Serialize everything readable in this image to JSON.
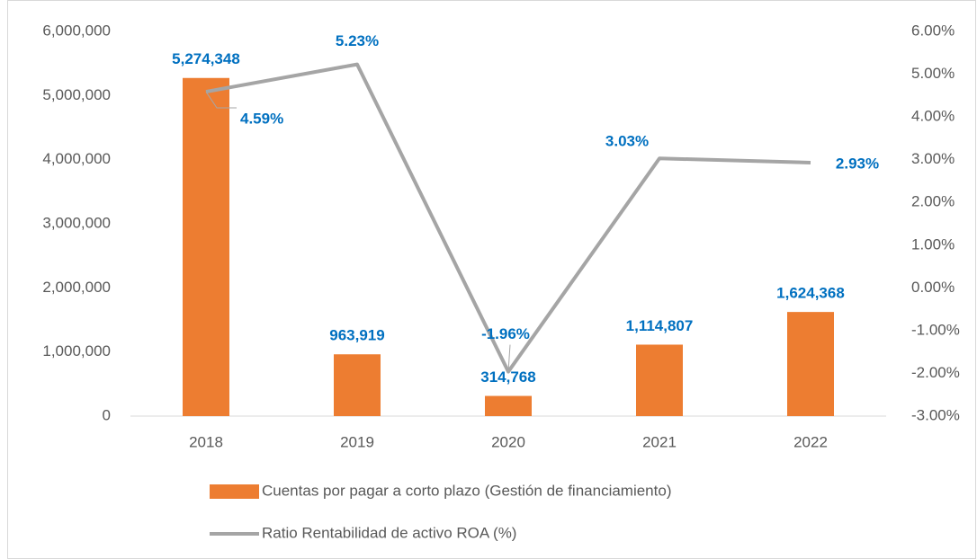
{
  "chart_data": {
    "type": "combo",
    "categories": [
      "2018",
      "2019",
      "2020",
      "2021",
      "2022"
    ],
    "series": [
      {
        "name": "Cuentas por pagar a corto plazo (Gestión de financiamiento)",
        "type": "bar",
        "color": "#ed7d31",
        "values": [
          5274348,
          963919,
          314768,
          1114807,
          1624368
        ],
        "value_labels": [
          "5,274,348",
          "963,919",
          "314,768",
          "1,114,807",
          "1,624,368"
        ]
      },
      {
        "name": "Ratio Rentabilidad de activo ROA (%)",
        "type": "line",
        "axis": "y2",
        "color": "#a5a5a5",
        "values": [
          4.59,
          5.23,
          -1.96,
          3.03,
          2.93
        ],
        "value_labels": [
          "4.59%",
          "5.23%",
          "-1.96%",
          "3.03%",
          "2.93%"
        ]
      }
    ],
    "ylim": [
      0,
      6000000
    ],
    "yticks": [
      0,
      {
        "value": 1000000,
        "label": "1,000,000"
      },
      {
        "value": 2000000,
        "label": "2,000,000"
      },
      {
        "value": 3000000,
        "label": "3,000,000"
      },
      {
        "value": 4000000,
        "label": "4,000,000"
      },
      {
        "value": 5000000,
        "label": "5,000,000"
      },
      {
        "value": 6000000,
        "label": "6,000,000"
      }
    ],
    "y2lim": [
      -3,
      6
    ],
    "y2ticks": [
      {
        "value": -3,
        "label": "-3.00%"
      },
      {
        "value": -2,
        "label": "-2.00%"
      },
      {
        "value": -1,
        "label": "-1.00%"
      },
      {
        "value": 0,
        "label": "0.00%"
      },
      {
        "value": 1,
        "label": "1.00%"
      },
      {
        "value": 2,
        "label": "2.00%"
      },
      {
        "value": 3,
        "label": "3.00%"
      },
      {
        "value": 4,
        "label": "4.00%"
      },
      {
        "value": 5,
        "label": "5.00%"
      },
      {
        "value": 6,
        "label": "6.00%"
      }
    ],
    "label_color": "#0070c0",
    "legend": "bottom",
    "grid": false
  }
}
